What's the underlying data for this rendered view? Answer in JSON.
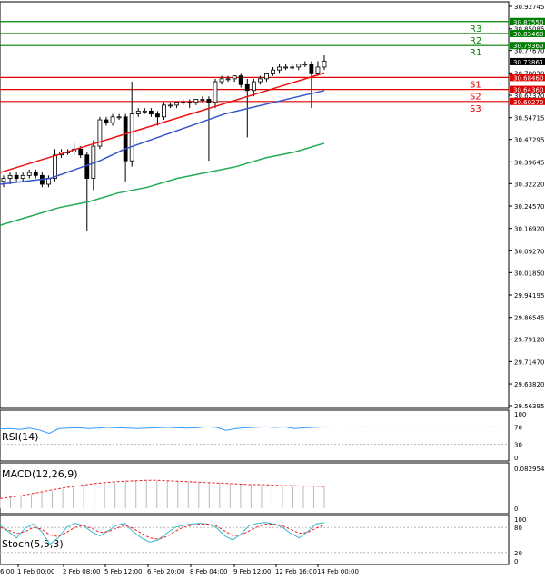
{
  "chart_data": {
    "type": "candlestick",
    "main": {
      "y_ticks": [
        "30.92745",
        "30.85085",
        "30.77670",
        "30.70020",
        "30.62370",
        "30.54715",
        "30.47295",
        "30.39645",
        "30.32220",
        "30.24570",
        "30.16920",
        "30.09270",
        "30.01850",
        "29.94195",
        "29.86545",
        "29.79120",
        "29.71470",
        "29.63820",
        "29.56395"
      ],
      "ylim": [
        29.56395,
        30.92745
      ],
      "current_price": "30.73861",
      "levels": [
        {
          "name": "R3",
          "value": 30.8755,
          "label": "30.87550",
          "color": "#008000"
        },
        {
          "name": "R2",
          "value": 30.8346,
          "label": "30.83460",
          "color": "#008000"
        },
        {
          "name": "R1",
          "value": 30.7936,
          "label": "30.79360",
          "color": "#008000"
        },
        {
          "name": "S1",
          "value": 30.6846,
          "label": "30.68460",
          "color": "#e00000"
        },
        {
          "name": "S2",
          "value": 30.6436,
          "label": "30.64360",
          "color": "#e00000"
        },
        {
          "name": "S3",
          "value": 30.6027,
          "label": "30.60270",
          "color": "#e00000"
        }
      ],
      "extra_axis_labels": [
        "30.70020",
        "30.62370"
      ],
      "candles": [
        [
          30.33,
          30.35,
          30.31,
          30.34
        ],
        [
          30.34,
          30.36,
          30.32,
          30.35
        ],
        [
          30.35,
          30.36,
          30.33,
          30.34
        ],
        [
          30.34,
          30.36,
          30.33,
          30.35
        ],
        [
          30.35,
          30.37,
          30.34,
          30.36
        ],
        [
          30.36,
          30.37,
          30.34,
          30.35
        ],
        [
          30.35,
          30.36,
          30.31,
          30.32
        ],
        [
          30.32,
          30.35,
          30.31,
          30.34
        ],
        [
          30.34,
          30.44,
          30.33,
          30.42
        ],
        [
          30.42,
          30.44,
          30.41,
          30.43
        ],
        [
          30.43,
          30.44,
          30.42,
          30.43
        ],
        [
          30.43,
          30.46,
          30.42,
          30.44
        ],
        [
          30.44,
          30.45,
          30.41,
          30.42
        ],
        [
          30.42,
          30.43,
          30.16,
          30.34
        ],
        [
          30.34,
          30.47,
          30.3,
          30.45
        ],
        [
          30.45,
          30.55,
          30.44,
          30.54
        ],
        [
          30.54,
          30.55,
          30.52,
          30.53
        ],
        [
          30.53,
          30.56,
          30.52,
          30.55
        ],
        [
          30.55,
          30.56,
          30.54,
          30.55
        ],
        [
          30.55,
          30.56,
          30.33,
          30.4
        ],
        [
          30.4,
          30.67,
          30.38,
          30.56
        ],
        [
          30.56,
          30.58,
          30.55,
          30.57
        ],
        [
          30.57,
          30.58,
          30.56,
          30.57
        ],
        [
          30.57,
          30.58,
          30.55,
          30.56
        ],
        [
          30.56,
          30.57,
          30.52,
          30.55
        ],
        [
          30.55,
          30.6,
          30.54,
          30.59
        ],
        [
          30.59,
          30.6,
          30.58,
          30.59
        ],
        [
          30.59,
          30.6,
          30.58,
          30.6
        ],
        [
          30.6,
          30.61,
          30.59,
          30.6
        ],
        [
          30.6,
          30.61,
          30.58,
          30.6
        ],
        [
          30.6,
          30.61,
          30.59,
          30.61
        ],
        [
          30.61,
          30.62,
          30.6,
          30.61
        ],
        [
          30.61,
          30.62,
          30.4,
          30.6
        ],
        [
          30.6,
          30.68,
          30.58,
          30.67
        ],
        [
          30.67,
          30.69,
          30.66,
          30.68
        ],
        [
          30.68,
          30.69,
          30.67,
          30.68
        ],
        [
          30.68,
          30.69,
          30.67,
          30.69
        ],
        [
          30.69,
          30.7,
          30.65,
          30.66
        ],
        [
          30.66,
          30.68,
          30.48,
          30.64
        ],
        [
          30.64,
          30.68,
          30.62,
          30.67
        ],
        [
          30.67,
          30.69,
          30.66,
          30.68
        ],
        [
          30.68,
          30.7,
          30.67,
          30.7
        ],
        [
          30.7,
          30.72,
          30.69,
          30.71
        ],
        [
          30.71,
          30.73,
          30.7,
          30.72
        ],
        [
          30.72,
          30.73,
          30.71,
          30.72
        ],
        [
          30.72,
          30.73,
          30.71,
          30.72
        ],
        [
          30.72,
          30.73,
          30.71,
          30.73
        ],
        [
          30.73,
          30.74,
          30.72,
          30.73
        ],
        [
          30.73,
          30.74,
          30.58,
          30.7
        ],
        [
          30.7,
          30.74,
          30.69,
          30.72
        ],
        [
          30.72,
          30.76,
          30.71,
          30.74
        ]
      ],
      "ma_red": [
        30.36,
        30.38,
        30.4,
        30.42,
        30.44,
        30.46,
        30.48,
        30.5,
        30.52,
        30.54,
        30.56,
        30.58,
        30.6,
        30.62,
        30.64,
        30.66,
        30.68,
        30.7
      ],
      "ma_blue": [
        30.32,
        30.33,
        30.34,
        30.37,
        30.4,
        30.44,
        30.47,
        30.5,
        30.53,
        30.56,
        30.58,
        30.6,
        30.62,
        30.64
      ],
      "ma_green": [
        30.18,
        30.21,
        30.24,
        30.26,
        30.29,
        30.31,
        30.34,
        30.36,
        30.38,
        30.41,
        30.43,
        30.46
      ]
    },
    "rsi": {
      "label": "RSI(14)",
      "y_ticks": [
        "100",
        "70",
        "30",
        "0"
      ],
      "values": [
        65,
        66,
        64,
        67,
        63,
        55,
        66,
        67,
        68,
        66,
        67,
        69,
        68,
        67,
        66,
        67,
        68,
        69,
        68,
        67,
        68,
        70,
        69,
        62,
        66,
        68,
        69,
        70,
        69,
        70,
        66,
        68,
        69,
        70
      ]
    },
    "macd": {
      "label": "MACD(12,26,9)",
      "y_ticks": [
        "0.082954",
        "0"
      ],
      "histogram": [
        0.02,
        0.022,
        0.024,
        0.028,
        0.032,
        0.036,
        0.04,
        0.044,
        0.047,
        0.05,
        0.052,
        0.054,
        0.056,
        0.057,
        0.058,
        0.057,
        0.057,
        0.056,
        0.055,
        0.054,
        0.053,
        0.052,
        0.051,
        0.05,
        0.049,
        0.048,
        0.048,
        0.047,
        0.047,
        0.046,
        0.046,
        0.045
      ],
      "signal": [
        0.02,
        0.023,
        0.026,
        0.03,
        0.034,
        0.038,
        0.042,
        0.045,
        0.048,
        0.051,
        0.053,
        0.055,
        0.056,
        0.057,
        0.058,
        0.058,
        0.057,
        0.056,
        0.055,
        0.054,
        0.053,
        0.052,
        0.051,
        0.05,
        0.049,
        0.049,
        0.048,
        0.047,
        0.047,
        0.046,
        0.046,
        0.045
      ]
    },
    "stoch": {
      "label": "Stoch(5,5,3)",
      "y_ticks": [
        "100",
        "80",
        "20",
        "0"
      ],
      "k": [
        85,
        70,
        55,
        78,
        88,
        70,
        40,
        55,
        80,
        90,
        85,
        70,
        60,
        72,
        85,
        90,
        70,
        55,
        45,
        50,
        65,
        80,
        85,
        88,
        90,
        88,
        80,
        60,
        50,
        65,
        85,
        90,
        92,
        88,
        80,
        65,
        55,
        70,
        88,
        92
      ],
      "d": [
        80,
        74,
        65,
        70,
        80,
        76,
        62,
        58,
        68,
        80,
        85,
        78,
        68,
        70,
        78,
        85,
        78,
        66,
        55,
        52,
        58,
        70,
        80,
        85,
        88,
        88,
        84,
        72,
        60,
        62,
        72,
        82,
        88,
        88,
        84,
        75,
        66,
        68,
        78,
        86
      ]
    },
    "x_labels": [
      "1 Feb 00:00",
      "2 Feb 08:00",
      "5 Feb 12:00",
      "6 Feb 20:00",
      "8 Feb 04:00",
      "9 Feb 12:00",
      "12 Feb 16:00",
      "14 Feb 00:00"
    ],
    "x_label_first_partial": "6:00"
  },
  "colors": {
    "ma_red": "#ee1111",
    "ma_blue": "#3355cc",
    "ma_green": "#22aa55",
    "candle_up": "#ffffff",
    "candle_down": "#000000",
    "rsi_line": "#3399ff",
    "macd_hist": "#bbbbbb",
    "macd_signal": "#ee2222",
    "stoch_k": "#33bbcc",
    "stoch_d": "#ee2222"
  }
}
